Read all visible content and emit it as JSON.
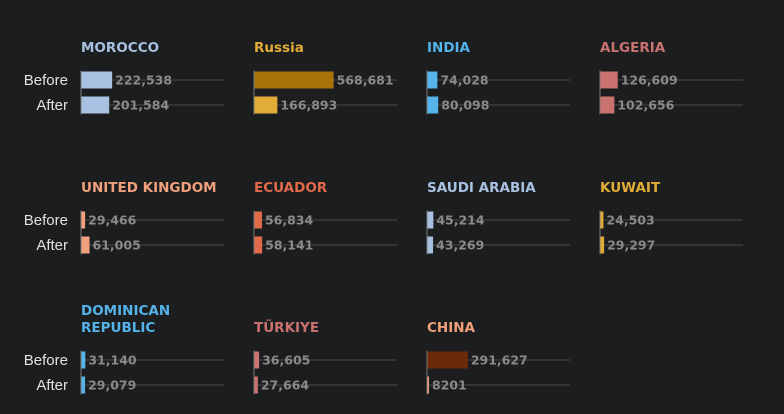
{
  "chart_data": {
    "type": "bar",
    "row_labels": [
      "Before",
      "After"
    ],
    "xlim": [
      0,
      600000
    ],
    "panels": [
      {
        "title": "MOROCCO",
        "color": "#a8c1e0",
        "before": 222538,
        "after": 201584,
        "before_label": "222,538",
        "after_label": "201,584"
      },
      {
        "title": "Russia",
        "color": "#e2ad37",
        "before_color": "#a8740a",
        "before": 568681,
        "after": 166893,
        "before_label": "568,681",
        "after_label": "166,893"
      },
      {
        "title": "INDIA",
        "color": "#54b3e8",
        "before": 74028,
        "after": 80098,
        "before_label": "74,028",
        "after_label": "80,098"
      },
      {
        "title": "ALGERIA",
        "color": "#c9726f",
        "before": 126609,
        "after": 102656,
        "before_label": "126,609",
        "after_label": "102,656"
      },
      {
        "title": "UNITED KINGDOM",
        "color": "#f0a07a",
        "before": 29466,
        "after": 61005,
        "before_label": "29,466",
        "after_label": "61,005"
      },
      {
        "title": "ECUADOR",
        "color": "#e06a4a",
        "before": 56834,
        "after": 58141,
        "before_label": "56,834",
        "after_label": "58,141"
      },
      {
        "title": "SAUDI ARABIA",
        "color": "#a8c1e0",
        "before": 45214,
        "after": 43269,
        "before_label": "45,214",
        "after_label": "43,269"
      },
      {
        "title": "KUWAIT",
        "color": "#e2ad37",
        "before": 24503,
        "after": 29297,
        "before_label": "24,503",
        "after_label": "29,297"
      },
      {
        "title": "DOMINICAN REPUBLIC",
        "title_lines": [
          "DOMINICAN",
          "REPUBLIC"
        ],
        "color": "#54b3e8",
        "before": 31140,
        "after": 29079,
        "before_label": "31,140",
        "after_label": "29,079"
      },
      {
        "title": "TÜRKIYE",
        "color": "#c9726f",
        "before": 36605,
        "after": 27664,
        "before_label": "36,605",
        "after_label": "27,664"
      },
      {
        "title": "CHINA",
        "color": "#f0a07a",
        "before_color": "#6b2a0a",
        "before": 291627,
        "after": 8201,
        "before_label": "291,627",
        "after_label": "8201"
      }
    ]
  }
}
